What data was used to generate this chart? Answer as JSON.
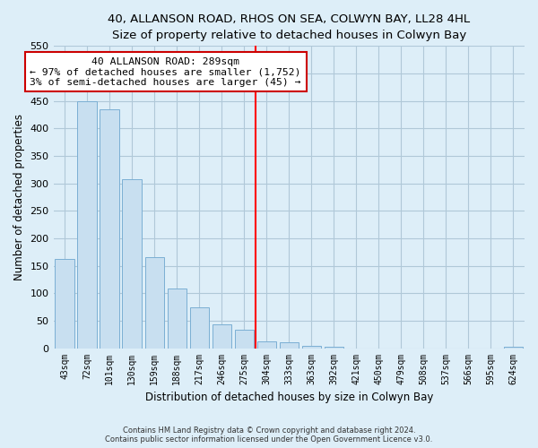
{
  "title": "40, ALLANSON ROAD, RHOS ON SEA, COLWYN BAY, LL28 4HL",
  "subtitle": "Size of property relative to detached houses in Colwyn Bay",
  "xlabel": "Distribution of detached houses by size in Colwyn Bay",
  "ylabel": "Number of detached properties",
  "bar_labels": [
    "43sqm",
    "72sqm",
    "101sqm",
    "130sqm",
    "159sqm",
    "188sqm",
    "217sqm",
    "246sqm",
    "275sqm",
    "304sqm",
    "333sqm",
    "363sqm",
    "392sqm",
    "421sqm",
    "450sqm",
    "479sqm",
    "508sqm",
    "537sqm",
    "566sqm",
    "595sqm",
    "624sqm"
  ],
  "bar_values": [
    163,
    450,
    435,
    308,
    165,
    108,
    74,
    43,
    33,
    12,
    10,
    4,
    2,
    0,
    0,
    0,
    0,
    0,
    0,
    0,
    2
  ],
  "bar_color": "#c8dff0",
  "bar_edge_color": "#7bafd4",
  "vline_x": 8.5,
  "vline_color": "red",
  "annotation_title": "40 ALLANSON ROAD: 289sqm",
  "annotation_line1": "← 97% of detached houses are smaller (1,752)",
  "annotation_line2": "3% of semi-detached houses are larger (45) →",
  "annotation_box_facecolor": "white",
  "annotation_box_edgecolor": "#cc0000",
  "ylim": [
    0,
    550
  ],
  "yticks": [
    0,
    50,
    100,
    150,
    200,
    250,
    300,
    350,
    400,
    450,
    500,
    550
  ],
  "footer1": "Contains HM Land Registry data © Crown copyright and database right 2024.",
  "footer2": "Contains public sector information licensed under the Open Government Licence v3.0.",
  "bg_color": "#ddeef8",
  "grid_color": "#b0c8d8"
}
